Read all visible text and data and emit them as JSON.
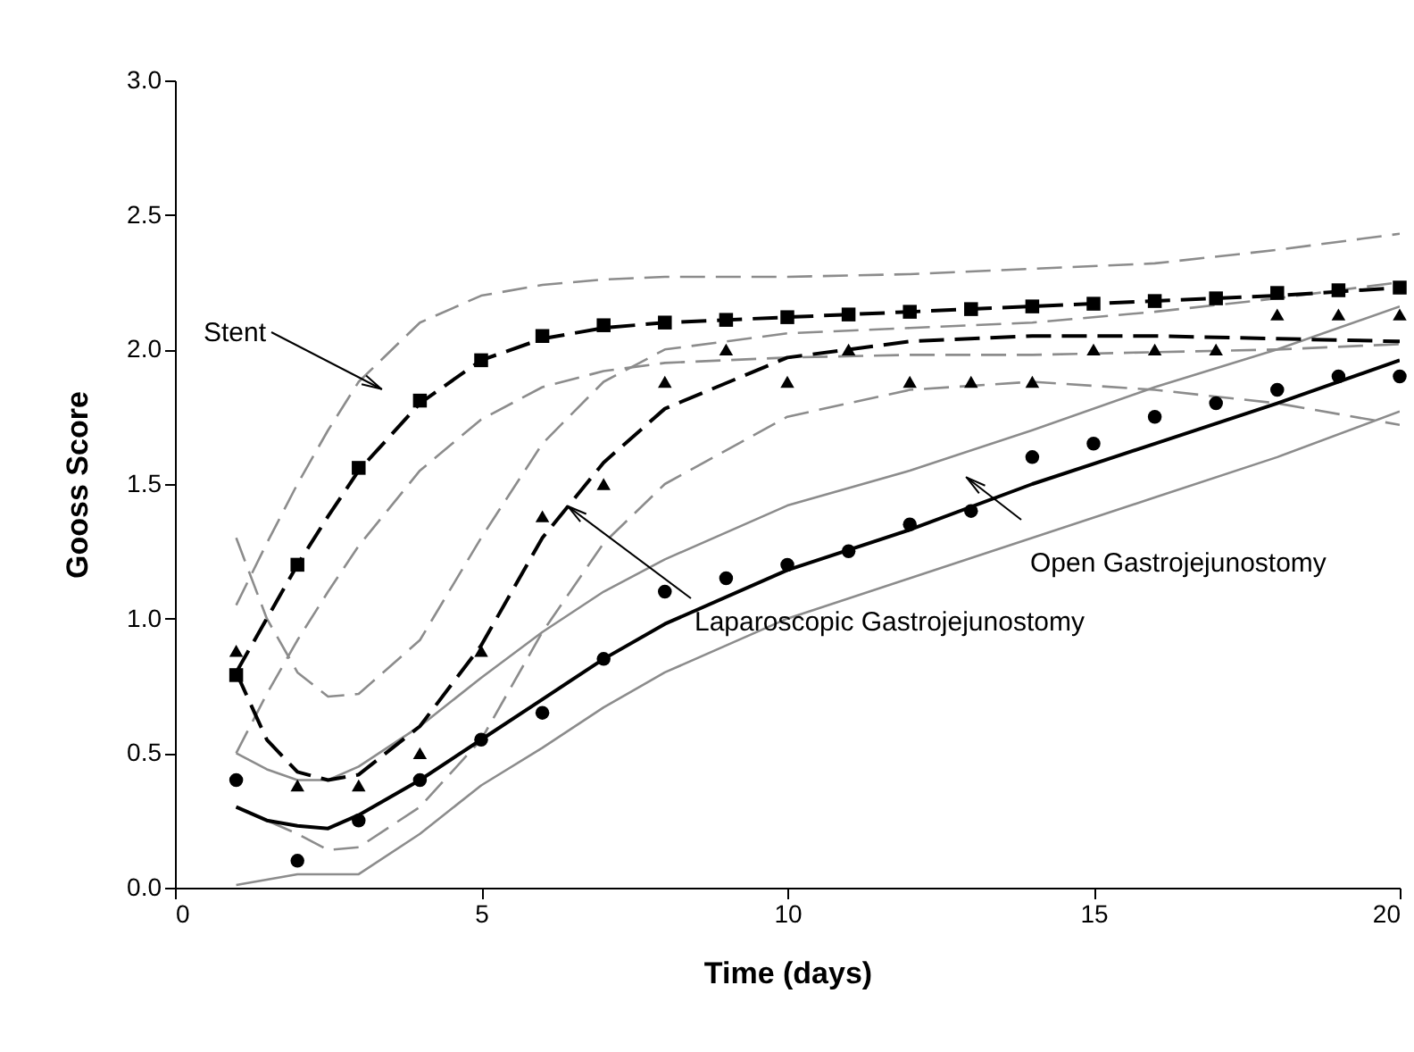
{
  "chart_data": {
    "type": "scatter",
    "xlabel": "Time (days)",
    "ylabel": "Gooss Score",
    "xlim": [
      0,
      20
    ],
    "ylim": [
      0,
      3
    ],
    "xticks": [
      0,
      5,
      10,
      15,
      20
    ],
    "yticks": [
      {
        "value": 0,
        "label": "0.0"
      },
      {
        "value": 0.5,
        "label": "0.5"
      },
      {
        "value": 1,
        "label": "1.0"
      },
      {
        "value": 1.5,
        "label": "1.5"
      },
      {
        "value": 2,
        "label": "2.0"
      },
      {
        "value": 2.5,
        "label": "2.5"
      },
      {
        "value": 3,
        "label": "3.0"
      }
    ],
    "grid": false,
    "x": [
      1,
      2,
      3,
      4,
      5,
      6,
      7,
      8,
      9,
      10,
      11,
      12,
      13,
      14,
      15,
      16,
      17,
      18,
      19,
      20
    ],
    "series": [
      {
        "type": "line",
        "color": "#8c8c8c",
        "line_style": "dashed",
        "x": [
          1,
          1.5,
          2,
          2.5,
          3,
          4,
          5,
          6,
          7,
          8,
          10,
          12,
          14,
          16,
          18,
          20
        ],
        "values": [
          1.05,
          1.28,
          1.5,
          1.7,
          1.88,
          2.1,
          2.2,
          2.24,
          2.26,
          2.27,
          2.27,
          2.28,
          2.3,
          2.32,
          2.37,
          2.43
        ]
      },
      {
        "type": "line",
        "color": "#8c8c8c",
        "line_style": "dashed",
        "x": [
          1,
          1.5,
          2,
          2.5,
          3,
          4,
          5,
          6,
          7,
          8,
          10,
          12,
          14,
          16,
          18,
          20
        ],
        "values": [
          0.5,
          0.72,
          0.92,
          1.1,
          1.27,
          1.55,
          1.74,
          1.86,
          1.92,
          1.95,
          1.97,
          1.98,
          1.98,
          1.99,
          2.0,
          2.02
        ]
      },
      {
        "type": "line",
        "color": "#8c8c8c",
        "line_style": "dashed",
        "x": [
          1,
          1.5,
          2,
          2.5,
          3,
          4,
          5,
          6,
          7,
          8,
          10,
          12,
          14,
          16,
          18,
          20
        ],
        "values": [
          1.3,
          1.0,
          0.8,
          0.71,
          0.72,
          0.92,
          1.3,
          1.65,
          1.88,
          2.0,
          2.06,
          2.08,
          2.1,
          2.14,
          2.19,
          2.25
        ]
      },
      {
        "type": "line",
        "color": "#8c8c8c",
        "line_style": "dashed",
        "x": [
          1,
          1.5,
          2,
          2.5,
          3,
          4,
          5,
          6,
          7,
          8,
          10,
          12,
          14,
          16,
          18,
          20
        ],
        "values": [
          0.3,
          0.25,
          0.2,
          0.14,
          0.15,
          0.3,
          0.55,
          0.95,
          1.28,
          1.5,
          1.75,
          1.85,
          1.88,
          1.85,
          1.8,
          1.72
        ]
      },
      {
        "type": "line",
        "color": "#8c8c8c",
        "line_style": "solid",
        "x": [
          1,
          1.5,
          2,
          2.5,
          3,
          4,
          5,
          6,
          7,
          8,
          10,
          12,
          14,
          16,
          18,
          20
        ],
        "values": [
          0.5,
          0.44,
          0.4,
          0.4,
          0.45,
          0.6,
          0.78,
          0.95,
          1.1,
          1.22,
          1.42,
          1.55,
          1.7,
          1.86,
          2.0,
          2.16
        ]
      },
      {
        "type": "line",
        "color": "#8c8c8c",
        "line_style": "solid",
        "x": [
          1,
          1.5,
          2,
          2.5,
          3,
          4,
          5,
          6,
          7,
          8,
          10,
          12,
          14,
          16,
          18,
          20
        ],
        "values": [
          0.01,
          0.03,
          0.05,
          0.05,
          0.05,
          0.2,
          0.38,
          0.52,
          0.67,
          0.8,
          1.0,
          1.15,
          1.3,
          1.45,
          1.6,
          1.77
        ]
      },
      {
        "type": "line",
        "color": "#000000",
        "line_style": "dashed",
        "x": [
          1,
          1.5,
          2,
          2.5,
          3,
          4,
          5,
          6,
          7,
          8,
          10,
          12,
          14,
          16,
          18,
          20
        ],
        "values": [
          0.8,
          1.0,
          1.2,
          1.38,
          1.55,
          1.8,
          1.96,
          2.04,
          2.08,
          2.1,
          2.12,
          2.14,
          2.16,
          2.18,
          2.2,
          2.23
        ]
      },
      {
        "type": "line",
        "color": "#000000",
        "line_style": "dashed",
        "x": [
          1,
          1.5,
          2,
          2.5,
          3,
          4,
          5,
          6,
          7,
          8,
          10,
          12,
          14,
          16,
          18,
          20
        ],
        "values": [
          0.8,
          0.55,
          0.43,
          0.4,
          0.42,
          0.6,
          0.9,
          1.3,
          1.58,
          1.78,
          1.97,
          2.03,
          2.05,
          2.05,
          2.04,
          2.03
        ]
      },
      {
        "type": "line",
        "color": "#000000",
        "line_style": "solid",
        "x": [
          1,
          1.5,
          2,
          2.5,
          3,
          4,
          5,
          6,
          7,
          8,
          10,
          12,
          14,
          16,
          18,
          20
        ],
        "values": [
          0.3,
          0.25,
          0.23,
          0.22,
          0.27,
          0.4,
          0.55,
          0.7,
          0.85,
          0.98,
          1.18,
          1.33,
          1.5,
          1.65,
          1.8,
          1.96
        ]
      },
      {
        "color": "#000000",
        "marker": "square",
        "values": [
          0.79,
          1.2,
          1.56,
          1.81,
          1.96,
          2.05,
          2.09,
          2.1,
          2.11,
          2.12,
          2.13,
          2.14,
          2.15,
          2.16,
          2.17,
          2.18,
          2.19,
          2.21,
          2.22,
          2.23
        ]
      },
      {
        "color": "#000000",
        "marker": "triangle",
        "values": [
          0.88,
          0.38,
          0.38,
          0.5,
          0.88,
          1.38,
          1.5,
          1.88,
          2.0,
          1.88,
          2.0,
          1.88,
          1.88,
          1.88,
          2.0,
          2.0,
          2.0,
          2.13,
          2.13,
          2.13
        ]
      },
      {
        "color": "#000000",
        "marker": "circle",
        "values": [
          0.4,
          0.1,
          0.25,
          0.4,
          0.55,
          0.65,
          0.85,
          1.1,
          1.15,
          1.2,
          1.25,
          1.35,
          1.4,
          1.6,
          1.65,
          1.75,
          1.8,
          1.85,
          1.9,
          1.9
        ]
      }
    ],
    "annotations": [
      "Stent",
      {
        "text": "Laparoscopic Gastrojejunostomy",
        "x": 6.4,
        "y": 1.42
      },
      "Open Gastrojejunostomy"
    ]
  }
}
